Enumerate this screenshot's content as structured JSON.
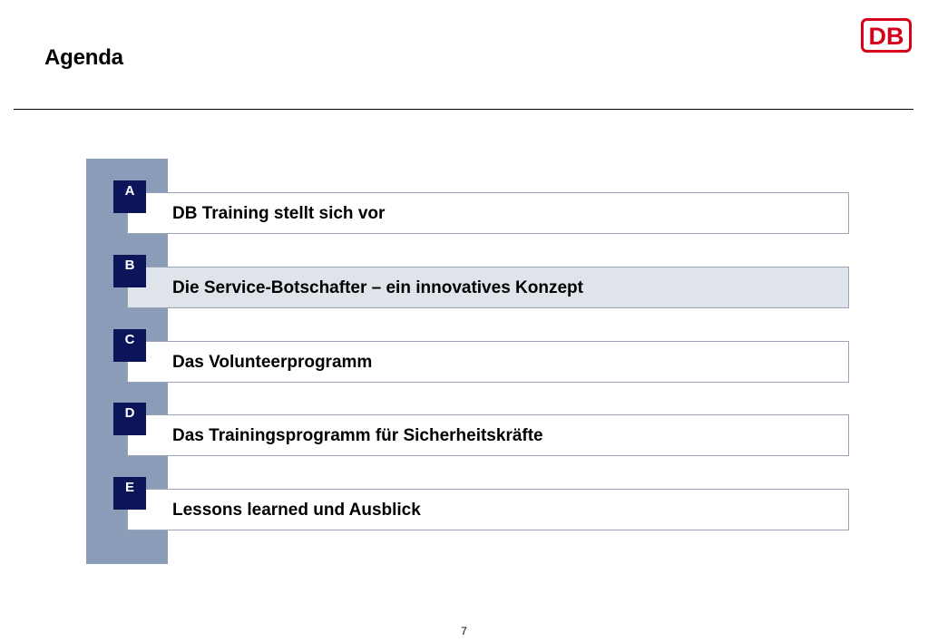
{
  "header": {
    "title": "Agenda",
    "logo_text": "DB",
    "logo_color": "#d7001b"
  },
  "agenda": {
    "items": [
      {
        "letter": "A",
        "label": "DB Training stellt sich vor",
        "active": false
      },
      {
        "letter": "B",
        "label": "Die Service-Botschafter – ein innovatives Konzept",
        "active": true
      },
      {
        "letter": "C",
        "label": "Das Volunteerprogramm",
        "active": false
      },
      {
        "letter": "D",
        "label": "Das Trainingsprogramm für Sicherheitskräfte",
        "active": false
      },
      {
        "letter": "E",
        "label": "Lessons learned und Ausblick",
        "active": false
      }
    ]
  },
  "colors": {
    "badge": "#0c1559",
    "side_bar": "#8b9cb9",
    "active_row": "#dfe3ea"
  },
  "footer": {
    "page_number": "7"
  }
}
